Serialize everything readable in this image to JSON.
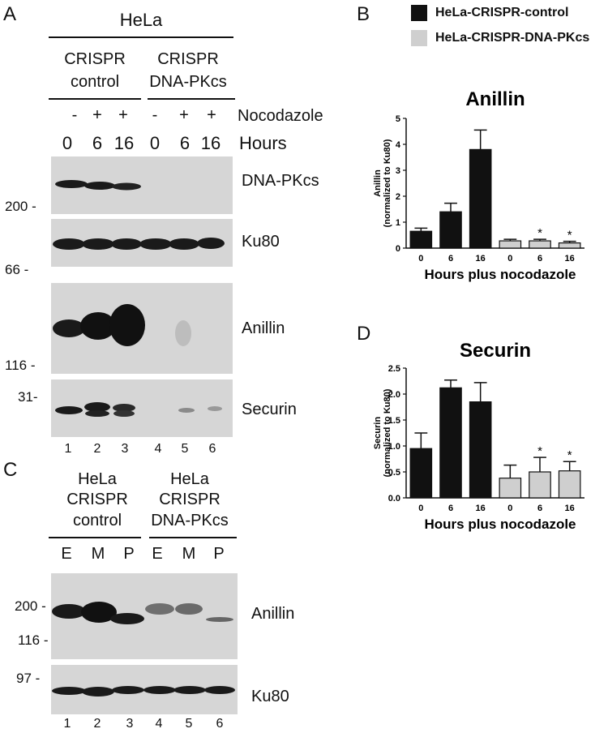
{
  "panelA": {
    "label": "A",
    "cell_line": "HeLa",
    "group1": {
      "line1": "CRISPR",
      "line2": "control"
    },
    "group2": {
      "line1": "CRISPR",
      "line2": "DNA-PKcs"
    },
    "treatment_label": "Nocodazole",
    "treatments": [
      "-",
      "+",
      "+",
      "-",
      "+",
      "+"
    ],
    "hours_label": "Hours",
    "hours": [
      "0",
      "6",
      "16",
      "0",
      "6",
      "16"
    ],
    "blots": [
      "DNA-PKcs",
      "Ku80",
      "Anillin",
      "Securin"
    ],
    "markers": [
      "200 -",
      "66 -",
      "116 -",
      "31-"
    ],
    "lanes": [
      "1",
      "2",
      "3",
      "4",
      "5",
      "6"
    ]
  },
  "panelC": {
    "label": "C",
    "group1": {
      "line1": "HeLa",
      "line2": "CRISPR",
      "line3": "control"
    },
    "group2": {
      "line1": "HeLa",
      "line2": "CRISPR",
      "line3": "DNA-PKcs"
    },
    "phases": [
      "E",
      "M",
      "P",
      "E",
      "M",
      "P"
    ],
    "blots": [
      "Anillin",
      "Ku80"
    ],
    "markers": [
      "200 -",
      "116 -",
      "97 -"
    ],
    "lanes": [
      "1",
      "2",
      "3",
      "4",
      "5",
      "6"
    ]
  },
  "legend": {
    "control": "HeLa-CRISPR-control",
    "dnapk": "HeLa-CRISPR-DNA-PKcs",
    "control_color": "#111111",
    "dnapk_color": "#cfcfcf"
  },
  "chart_data": [
    {
      "panel": "B",
      "type": "bar",
      "title": "Anillin",
      "ylabel": "Anillin (normalized to Ku80)",
      "xlabel": "Hours plus nocodazole",
      "categories": [
        "0",
        "6",
        "16",
        "0",
        "6",
        "16"
      ],
      "series": [
        {
          "name": "HeLa-CRISPR-control",
          "values": [
            0.65,
            1.4,
            3.8,
            null,
            null,
            null
          ],
          "errors": [
            0.12,
            0.33,
            0.75,
            null,
            null,
            null
          ],
          "color": "#111111"
        },
        {
          "name": "HeLa-CRISPR-DNA-PKcs",
          "values": [
            null,
            null,
            null,
            0.28,
            0.28,
            0.2
          ],
          "errors": [
            null,
            null,
            null,
            0.06,
            0.06,
            0.06
          ],
          "color": "#cfcfcf"
        }
      ],
      "significance": [
        "",
        "",
        "",
        "",
        "*",
        "*"
      ],
      "ylim": [
        0,
        5
      ],
      "yticks": [
        "0",
        "1",
        "2",
        "3",
        "4",
        "5"
      ]
    },
    {
      "panel": "D",
      "type": "bar",
      "title": "Securin",
      "ylabel": "Securin (normalized to Ku80)",
      "xlabel": "Hours plus nocodazole",
      "categories": [
        "0",
        "6",
        "16",
        "0",
        "6",
        "16"
      ],
      "series": [
        {
          "name": "HeLa-CRISPR-control",
          "values": [
            0.95,
            2.12,
            1.85,
            null,
            null,
            null
          ],
          "errors": [
            0.3,
            0.15,
            0.37,
            null,
            null,
            null
          ],
          "color": "#111111"
        },
        {
          "name": "HeLa-CRISPR-DNA-PKcs",
          "values": [
            null,
            null,
            null,
            0.38,
            0.5,
            0.52
          ],
          "errors": [
            null,
            null,
            null,
            0.25,
            0.28,
            0.18
          ],
          "color": "#cfcfcf"
        }
      ],
      "significance": [
        "",
        "",
        "",
        "",
        "*",
        "*"
      ],
      "ylim": [
        0,
        2.5
      ],
      "yticks": [
        "0.0",
        "0.5",
        "1.0",
        "1.5",
        "2.0",
        "2.5"
      ]
    }
  ]
}
